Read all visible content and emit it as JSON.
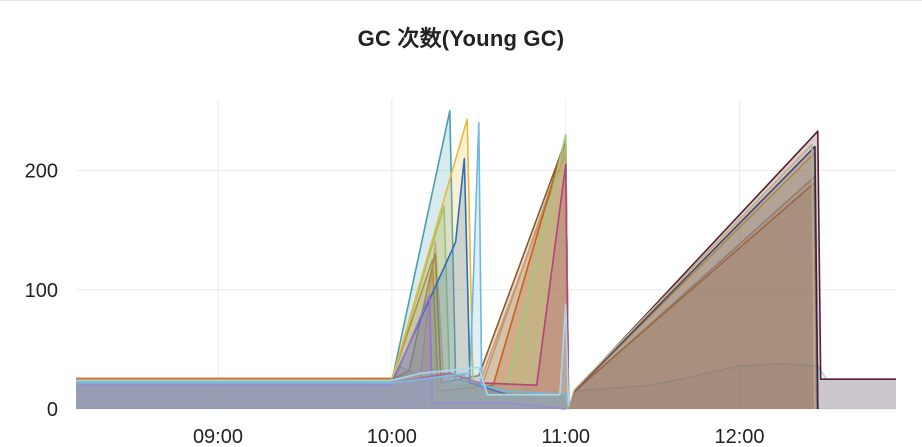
{
  "panel": {
    "title": "GC 次数(Young GC)"
  },
  "chart_data": {
    "type": "area",
    "title": "GC 次数(Young GC)",
    "xlabel": "",
    "ylabel": "",
    "x_unit": "time (HH:MM)",
    "xlim": [
      "08:11",
      "12:54"
    ],
    "ylim": [
      0,
      260
    ],
    "grid": true,
    "legend": "none",
    "x_ticks": [
      "09:00",
      "10:00",
      "11:00",
      "12:00"
    ],
    "y_ticks": [
      0,
      100,
      200
    ],
    "series": [
      {
        "color": "#b9ae8d",
        "points": [
          [
            "08:11",
            24
          ],
          [
            "10:00",
            24
          ],
          [
            "10:03",
            35
          ],
          [
            "10:12",
            26
          ],
          [
            "10:25",
            28
          ],
          [
            "10:30",
            12
          ],
          [
            "11:00",
            222
          ],
          [
            "11:01",
            0
          ]
        ]
      },
      {
        "color": "#e8a87c",
        "points": [
          [
            "08:11",
            26
          ],
          [
            "10:00",
            26
          ],
          [
            "10:10",
            30
          ],
          [
            "10:15",
            140
          ],
          [
            "10:18",
            20
          ],
          [
            "10:30",
            20
          ],
          [
            "11:00",
            215
          ],
          [
            "11:01",
            0
          ]
        ]
      },
      {
        "color": "#8a5a2b",
        "points": [
          [
            "08:11",
            24
          ],
          [
            "10:00",
            25
          ],
          [
            "10:06",
            32
          ],
          [
            "10:15",
            130
          ],
          [
            "10:17",
            22
          ],
          [
            "10:30",
            28
          ],
          [
            "11:00",
            225
          ],
          [
            "11:01",
            0
          ]
        ]
      },
      {
        "color": "#c0651a",
        "points": [
          [
            "08:11",
            25
          ],
          [
            "10:00",
            25
          ],
          [
            "10:14",
            125
          ],
          [
            "10:16",
            15
          ],
          [
            "10:35",
            20
          ],
          [
            "11:00",
            228
          ],
          [
            "11:01",
            0
          ]
        ]
      },
      {
        "color": "#9acd79",
        "points": [
          [
            "08:11",
            24
          ],
          [
            "10:00",
            24
          ],
          [
            "10:18",
            170
          ],
          [
            "10:20",
            20
          ],
          [
            "10:40",
            22
          ],
          [
            "11:00",
            230
          ],
          [
            "11:01",
            0
          ]
        ]
      },
      {
        "color": "#4a9fb0",
        "points": [
          [
            "08:11",
            23
          ],
          [
            "10:00",
            23
          ],
          [
            "10:20",
            250
          ],
          [
            "10:22",
            25
          ],
          [
            "10:40",
            15
          ],
          [
            "10:55",
            12
          ],
          [
            "11:00",
            12
          ],
          [
            "11:01",
            0
          ]
        ]
      },
      {
        "color": "#e6b93b",
        "points": [
          [
            "08:11",
            24
          ],
          [
            "10:00",
            24
          ],
          [
            "10:26",
            243
          ],
          [
            "10:28",
            20
          ],
          [
            "10:40",
            15
          ],
          [
            "10:55",
            12
          ],
          [
            "11:00",
            12
          ],
          [
            "11:01",
            0
          ]
        ]
      },
      {
        "color": "#2e6fb8",
        "points": [
          [
            "08:11",
            22
          ],
          [
            "10:00",
            22
          ],
          [
            "10:22",
            140
          ],
          [
            "10:25",
            210
          ],
          [
            "10:27",
            22
          ],
          [
            "10:40",
            12
          ],
          [
            "11:00",
            12
          ],
          [
            "11:01",
            0
          ]
        ]
      },
      {
        "color": "#9b6fd6",
        "points": [
          [
            "08:11",
            20
          ],
          [
            "10:00",
            20
          ],
          [
            "10:13",
            95
          ],
          [
            "10:14",
            5
          ],
          [
            "10:40",
            5
          ],
          [
            "11:00",
            0
          ]
        ]
      },
      {
        "color": "#b5427a",
        "points": [
          [
            "08:11",
            22
          ],
          [
            "10:00",
            22
          ],
          [
            "10:20",
            30
          ],
          [
            "10:30",
            22
          ],
          [
            "10:50",
            20
          ],
          [
            "11:00",
            205
          ],
          [
            "11:01",
            0
          ]
        ]
      },
      {
        "color": "#6db8e0",
        "points": [
          [
            "08:11",
            22
          ],
          [
            "10:00",
            22
          ],
          [
            "10:27",
            30
          ],
          [
            "10:30",
            240
          ],
          [
            "10:31",
            20
          ],
          [
            "10:40",
            15
          ],
          [
            "11:00",
            12
          ],
          [
            "11:01",
            0
          ]
        ]
      },
      {
        "color": "#a8d8ea",
        "points": [
          [
            "08:11",
            24
          ],
          [
            "10:00",
            24
          ],
          [
            "10:10",
            30
          ],
          [
            "10:30",
            35
          ],
          [
            "10:33",
            12
          ],
          [
            "10:58",
            12
          ],
          [
            "11:00",
            88
          ],
          [
            "11:01",
            0
          ],
          [
            "11:03",
            15
          ],
          [
            "11:30",
            20
          ],
          [
            "12:00",
            36
          ],
          [
            "12:14",
            38
          ],
          [
            "12:27",
            36
          ],
          [
            "12:30",
            25
          ],
          [
            "12:54",
            25
          ]
        ]
      },
      {
        "color": "#a89a99",
        "points": [
          [
            "11:01",
            0
          ],
          [
            "11:03",
            14
          ],
          [
            "12:26",
            195
          ],
          [
            "12:27",
            0
          ]
        ]
      },
      {
        "color": "#c0651a",
        "points": [
          [
            "11:01",
            0
          ],
          [
            "11:03",
            15
          ],
          [
            "12:26",
            190
          ],
          [
            "12:27",
            0
          ]
        ]
      },
      {
        "color": "#e6b93b",
        "points": [
          [
            "11:01",
            0
          ],
          [
            "11:03",
            15
          ],
          [
            "12:26",
            215
          ],
          [
            "12:27",
            0
          ]
        ]
      },
      {
        "color": "#1f2a5c",
        "points": [
          [
            "11:01",
            0
          ],
          [
            "11:03",
            15
          ],
          [
            "12:26",
            220
          ],
          [
            "12:27",
            0
          ]
        ]
      },
      {
        "color": "#5a1f2e",
        "points": [
          [
            "11:01",
            0
          ],
          [
            "11:03",
            15
          ],
          [
            "12:27",
            233
          ],
          [
            "12:28",
            25
          ],
          [
            "12:54",
            25
          ]
        ]
      },
      {
        "color": "#b9ae8d",
        "points": [
          [
            "11:01",
            0
          ],
          [
            "11:03",
            16
          ],
          [
            "12:25",
            222
          ],
          [
            "12:26",
            0
          ]
        ]
      }
    ]
  }
}
